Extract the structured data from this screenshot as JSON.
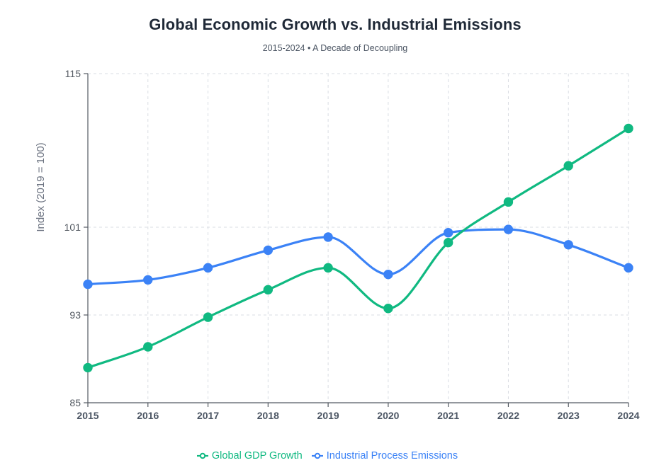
{
  "chart_data": {
    "type": "line",
    "title": "Global Economic Growth vs. Industrial Emissions",
    "subtitle": "2015-2024 • A Decade of Decoupling",
    "xlabel": "",
    "ylabel": "Index (2019 = 100)",
    "ylim": [
      85,
      115
    ],
    "yticks": [
      85,
      93,
      101,
      115
    ],
    "grid": true,
    "legend_position": "bottom-center",
    "categories": [
      "2015",
      "2016",
      "2017",
      "2018",
      "2019",
      "2020",
      "2021",
      "2022",
      "2023",
      "2024"
    ],
    "series": [
      {
        "name": "Global GDP Growth",
        "color": "#10b981",
        "values": [
          88.2,
          90.1,
          92.8,
          95.3,
          97.3,
          93.6,
          99.6,
          103.3,
          106.6,
          110.0
        ]
      },
      {
        "name": "Industrial Process Emissions",
        "color": "#3b82f6",
        "values": [
          95.8,
          96.2,
          97.3,
          98.9,
          100.1,
          96.7,
          100.5,
          100.8,
          99.4,
          97.3
        ]
      }
    ]
  }
}
